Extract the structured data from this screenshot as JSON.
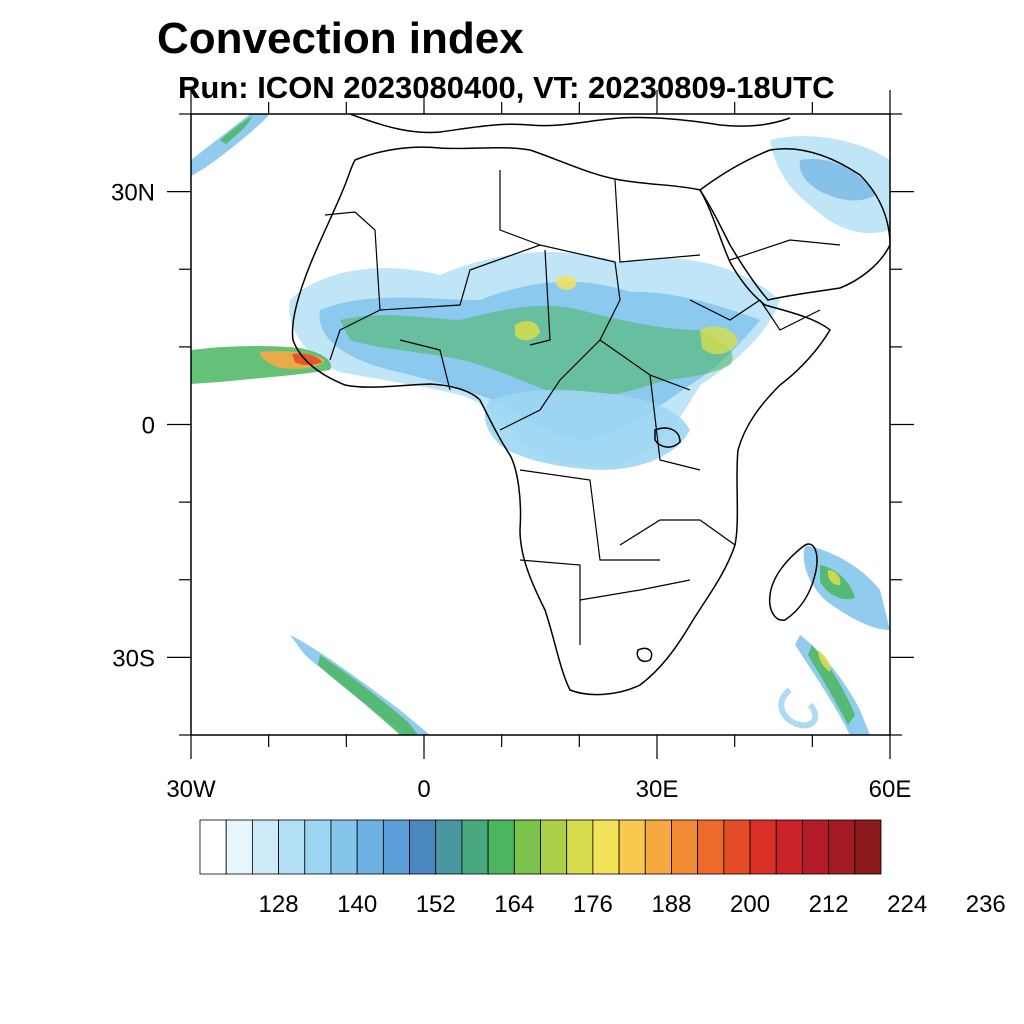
{
  "title": "Convection index",
  "subtitle": "Run: ICON 2023080400,  VT: 20230809-18UTC",
  "map": {
    "region": "Africa",
    "lon_range": [
      -30,
      60
    ],
    "lat_range": [
      -40,
      40
    ],
    "lon_ticks": [
      {
        "value": -30,
        "label": "30W"
      },
      {
        "value": 0,
        "label": "0"
      },
      {
        "value": 30,
        "label": "30E"
      },
      {
        "value": 60,
        "label": "60E"
      }
    ],
    "lat_ticks": [
      {
        "value": 30,
        "label": "30N"
      },
      {
        "value": 0,
        "label": "0"
      },
      {
        "value": -30,
        "label": "30S"
      }
    ]
  },
  "colorbar": {
    "colors": [
      "#ffffff",
      "#e8f5fc",
      "#cdeaf8",
      "#b4e0f6",
      "#9dd6f2",
      "#85c5ec",
      "#6eb2e4",
      "#5a9fd7",
      "#4a86c0",
      "#4a97a0",
      "#49a87e",
      "#4bb660",
      "#7cc24d",
      "#acd04a",
      "#d7dd4d",
      "#f1e25a",
      "#f8c94e",
      "#f6a841",
      "#f28b35",
      "#ec6a2c",
      "#e44c27",
      "#da3027",
      "#c92228",
      "#b51c27",
      "#a21a22",
      "#8c1a1c"
    ],
    "labels": [
      "128",
      "140",
      "152",
      "164",
      "176",
      "188",
      "200",
      "212",
      "224",
      "236"
    ]
  }
}
